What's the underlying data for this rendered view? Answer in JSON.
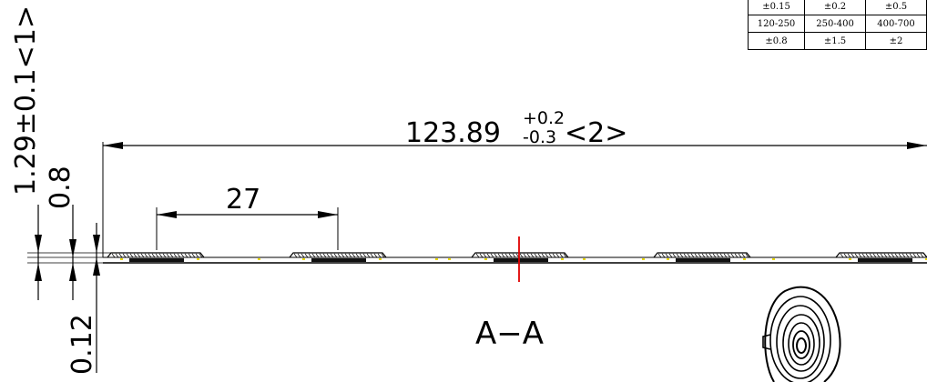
{
  "tolerance_table": {
    "rows": [
      [
        "±0.15",
        "±0.2",
        "±0.5"
      ],
      [
        "120-250",
        "250-400",
        "400-700"
      ],
      [
        "±0.8",
        "±1.5",
        "±2"
      ]
    ]
  },
  "dimensions": {
    "overall_length": {
      "base": "123.89",
      "upper": "+0.2",
      "lower": "-0.3",
      "tag": "<2>"
    },
    "pitch": "27",
    "total_thickness": "1.29±0.1<1>",
    "thickness_08": "0.8",
    "thickness_012": "0.12"
  },
  "section_label": "A−A"
}
